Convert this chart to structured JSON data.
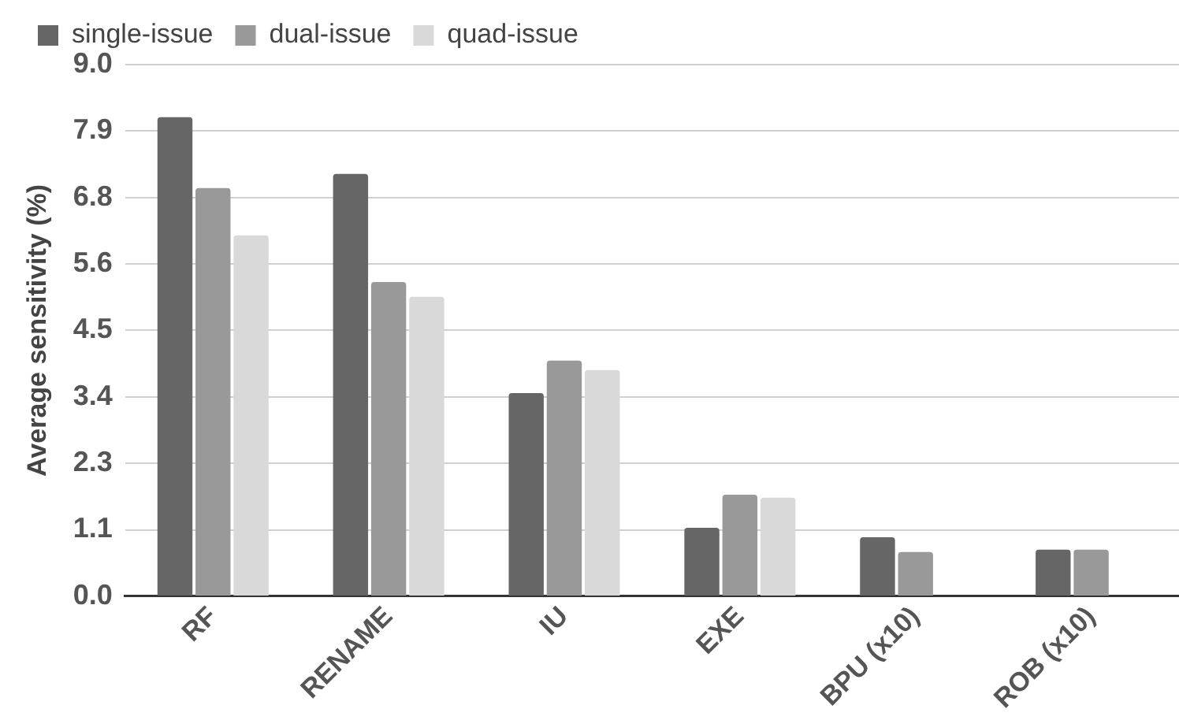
{
  "chart_data": {
    "type": "bar",
    "ylabel": "Average sensitivity (%)",
    "categories": [
      "RF",
      "RENAME",
      "IU",
      "EXE",
      "BPU (x10)",
      "ROB (x10)"
    ],
    "series": [
      {
        "name": "single-issue",
        "color": "#666666",
        "values": [
          8.11,
          7.15,
          3.44,
          1.16,
          1.0,
          0.79
        ]
      },
      {
        "name": "dual-issue",
        "color": "#999999",
        "values": [
          6.91,
          5.32,
          3.99,
          1.72,
          0.75,
          0.79
        ]
      },
      {
        "name": "quad-issue",
        "color": "#d9d9d9",
        "values": [
          6.11,
          5.07,
          3.83,
          1.67,
          null,
          null
        ]
      }
    ],
    "ylim": [
      0,
      9
    ],
    "yticks": [
      {
        "value": 0,
        "label": "0.0"
      },
      {
        "value": 1.125,
        "label": "1.1"
      },
      {
        "value": 2.25,
        "label": "2.3"
      },
      {
        "value": 3.375,
        "label": "3.4"
      },
      {
        "value": 4.5,
        "label": "4.5"
      },
      {
        "value": 5.625,
        "label": "5.6"
      },
      {
        "value": 6.75,
        "label": "6.8"
      },
      {
        "value": 7.875,
        "label": "7.9"
      },
      {
        "value": 9,
        "label": "9.0"
      }
    ],
    "grid": "y",
    "legend": "top"
  }
}
